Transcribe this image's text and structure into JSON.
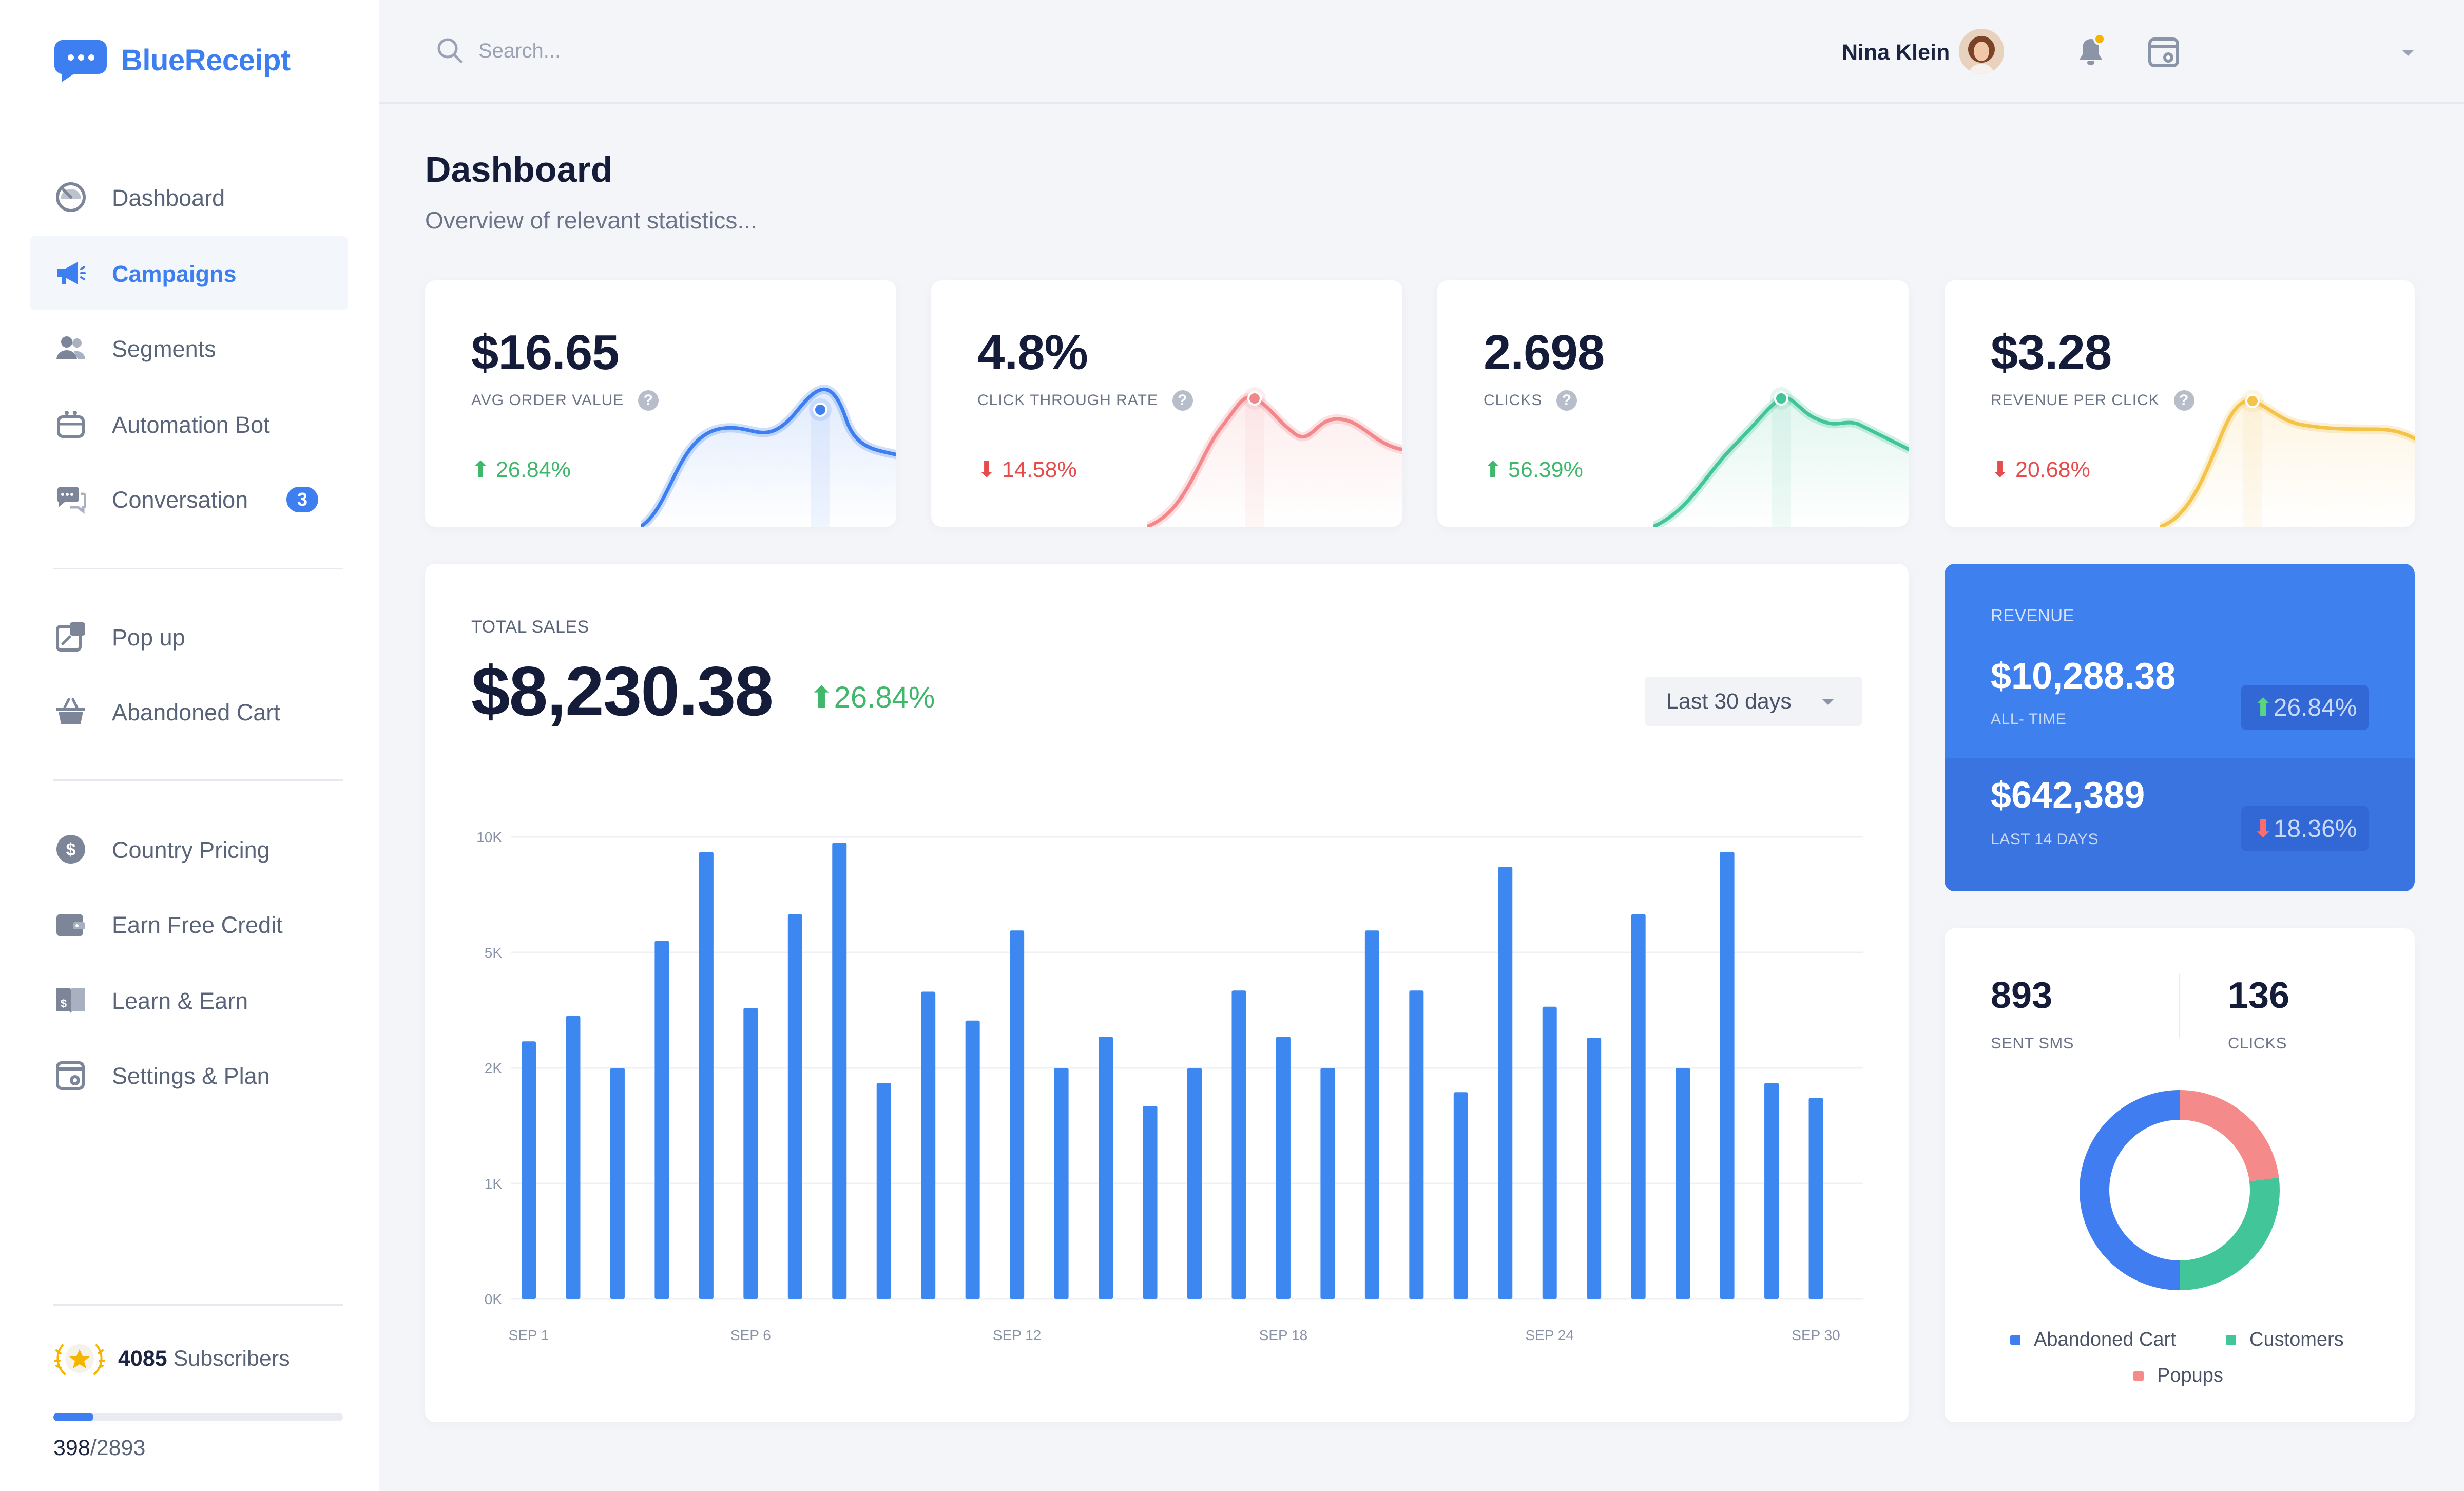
{
  "brand": {
    "name": "BlueReceipt",
    "color": "#3d7ff0"
  },
  "sidebar": {
    "items": [
      {
        "label": "Dashboard",
        "icon": "gauge-icon"
      },
      {
        "label": "Campaigns",
        "icon": "megaphone-icon",
        "active": true
      },
      {
        "label": "Segments",
        "icon": "users-icon"
      },
      {
        "label": "Automation Bot",
        "icon": "robot-icon"
      },
      {
        "label": "Conversation",
        "icon": "chat-icon",
        "badge": "3"
      },
      {
        "label": "Pop up",
        "icon": "popup-icon"
      },
      {
        "label": "Abandoned Cart",
        "icon": "basket-icon"
      },
      {
        "label": "Country Pricing",
        "icon": "dollar-icon"
      },
      {
        "label": "Earn Free Credit",
        "icon": "wallet-icon"
      },
      {
        "label": "Learn & Earn",
        "icon": "book-icon"
      },
      {
        "label": "Settings & Plan",
        "icon": "settings-icon"
      }
    ],
    "subscribers": {
      "count": "4085",
      "label": "Subscribers"
    },
    "progress": {
      "current": "398",
      "total": "/2893",
      "fraction": 0.1376
    }
  },
  "topbar": {
    "search_placeholder": "Search...",
    "user_name": "Nina Klein",
    "notification_dot_color": "#f5b400"
  },
  "page": {
    "title": "Dashboard",
    "subtitle": "Overview of relevant statistics..."
  },
  "stats": [
    {
      "value": "$16.65",
      "label": "AVG ORDER VALUE",
      "change": "26.84%",
      "direction": "up",
      "color": "#3d7ff0"
    },
    {
      "value": "4.8%",
      "label": "CLICK THROUGH RATE",
      "change": "14.58%",
      "direction": "down",
      "color": "#f2888b"
    },
    {
      "value": "2.698",
      "label": "CLICKS",
      "change": "56.39%",
      "direction": "up",
      "color": "#43c59a"
    },
    {
      "value": "$3.28",
      "label": "REVENUE PER CLICK",
      "change": "20.68%",
      "direction": "down",
      "color": "#f5c24a"
    }
  ],
  "sales": {
    "label": "TOTAL SALES",
    "value": "$8,230.38",
    "change": "26.84%",
    "range_select": "Last 30 days"
  },
  "chart_data": {
    "type": "bar",
    "title": "",
    "y_ticks": [
      "0K",
      "1K",
      "2K",
      "5K",
      "10K"
    ],
    "x_tick_labels": [
      "SEP 1",
      "SEP 6",
      "SEP 12",
      "SEP 18",
      "SEP 24",
      "SEP 30"
    ],
    "x_tick_indices": [
      0,
      5,
      11,
      17,
      23,
      29
    ],
    "ylabel": "",
    "series_color": "#3d87f0",
    "values_note": "",
    "levels": [
      2.23,
      2.45,
      2.0,
      3.1,
      3.87,
      2.52,
      3.33,
      3.95,
      1.87,
      2.66,
      2.41,
      3.19,
      2.0,
      2.27,
      1.67,
      2.0,
      2.67,
      2.27,
      2.0,
      3.19,
      2.67,
      1.79,
      3.74,
      2.53,
      2.26,
      3.33,
      2.0,
      3.87,
      1.87,
      1.74
    ]
  },
  "revenue": {
    "label": "REVENUE",
    "all_time_value": "$10,288.38",
    "all_time_label": "ALL- TIME",
    "all_time_change": "26.84%",
    "recent_value": "$642,389",
    "recent_label": "LAST 14 DAYS",
    "recent_change": "18.36%"
  },
  "sms": {
    "sent_value": "893",
    "sent_label": "SENT SMS",
    "clicks_value": "136",
    "clicks_label": "CLICKS"
  },
  "donut": {
    "segments": [
      {
        "name": "Abandoned Cart",
        "value": 0.5,
        "color": "#3f7df0"
      },
      {
        "name": "Customers",
        "value": 0.27,
        "color": "#43c59a"
      },
      {
        "name": "Popups",
        "value": 0.23,
        "color": "#f48a8a"
      }
    ]
  }
}
